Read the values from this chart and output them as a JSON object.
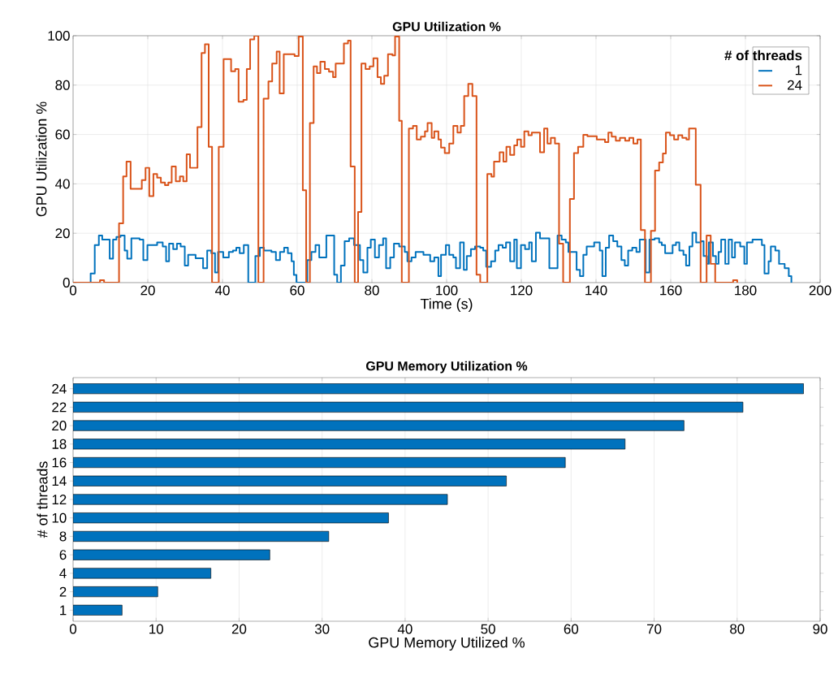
{
  "chart_data": [
    {
      "type": "step",
      "title": "GPU Utilization %",
      "xlabel": "Time (s)",
      "ylabel": "GPU Utilization %",
      "legend_title": "# of threads",
      "legend": "top right",
      "grid": true,
      "line_style": "solid",
      "xlim": [
        0,
        200
      ],
      "xticks": [
        0,
        20,
        40,
        60,
        80,
        100,
        120,
        140,
        160,
        180,
        200
      ],
      "ylim": [
        0,
        100
      ],
      "yticks": [
        0,
        20,
        40,
        60,
        80,
        100
      ],
      "series": [
        {
          "name": "1",
          "color": "#0072bd",
          "x": [
            0,
            4.7,
            5.8,
            6.9,
            7.8,
            9.8,
            10.7,
            11.6,
            12.7,
            13.8,
            14.5,
            15.6,
            17.8,
            18.8,
            19.9,
            22.5,
            24,
            24.9,
            25.7,
            26.8,
            27.8,
            28.8,
            29.9,
            30.8,
            32.8,
            34.8,
            35.9,
            37,
            38,
            38.8,
            40.2,
            41.7,
            42.8,
            43.7,
            44.6,
            45.7,
            46.9,
            48.8,
            50,
            51.1,
            53.1,
            54.3,
            55.4,
            56.5,
            57.5,
            58.5,
            59.1,
            59.8,
            62.7,
            63.8,
            64.9,
            65.9,
            67.8,
            69.9,
            70.7,
            71.7,
            72.7,
            73.9,
            75.2,
            76.8,
            77.7,
            78.8,
            79.7,
            80.8,
            81.9,
            83,
            83.8,
            84.9,
            85.9,
            87.3,
            88.8,
            89.5,
            90.6,
            91.7,
            93.8,
            95.6,
            96.7,
            97.8,
            98.5,
            99.8,
            100.7,
            101.8,
            102.5,
            103.6,
            104.6,
            105.4,
            106.5,
            107.6,
            109,
            109.8,
            110.6,
            111.9,
            113,
            113.9,
            115,
            115.9,
            117,
            118.1,
            118.8,
            119.9,
            121,
            122.1,
            122.8,
            123.9,
            125,
            127.5,
            129.7,
            130.8,
            131.9,
            132.6,
            134.8,
            135.7,
            136.6,
            137.5,
            139.5,
            141,
            141.7,
            142.6,
            143.5,
            144.6,
            145.7,
            146.8,
            147.7,
            148.6,
            149.7,
            150.8,
            151.7,
            153.3,
            154.3,
            155.7,
            156.9,
            157.6,
            158.5,
            160.5,
            161.4,
            162.3,
            163.4,
            164.1,
            165,
            165.8,
            166.8,
            168.1,
            168.8,
            169.7,
            170.2,
            171.3,
            172.1,
            172.8,
            173.5,
            174.6,
            175.5,
            176.4,
            177.2,
            178.6,
            179.7,
            180.4,
            181.9,
            184.4,
            185.1,
            186.2,
            186.8,
            188,
            189,
            190.5,
            191.6,
            192.3
          ],
          "values": [
            0,
            3.7,
            15.2,
            19.1,
            17.4,
            9.7,
            17.4,
            18.5,
            19.1,
            13,
            9.7,
            17.9,
            17.4,
            9.1,
            15.2,
            16.3,
            14.6,
            8.6,
            15.8,
            13.6,
            15.8,
            14.6,
            6.9,
            11.3,
            9.9,
            5.8,
            13,
            11.9,
            4.1,
            12.4,
            10.2,
            12.4,
            13,
            14.1,
            11.9,
            15.2,
            0,
            10.8,
            14.1,
            13,
            12.4,
            9.1,
            12.4,
            14.1,
            11.9,
            8.6,
            3.1,
            0,
            9.1,
            12.4,
            15.2,
            10.2,
            19.1,
            3.2,
            0,
            6.9,
            16.8,
            17.9,
            15.2,
            9.1,
            4.1,
            14.1,
            17.4,
            10.2,
            15.2,
            17.9,
            5.8,
            10.2,
            15.8,
            14.6,
            12.4,
            8.6,
            10.2,
            12.4,
            11.3,
            8.6,
            10.2,
            2.6,
            11.3,
            15.2,
            11.3,
            10.2,
            5.8,
            16.3,
            5.2,
            10.8,
            13.6,
            14.6,
            14.1,
            13,
            6.4,
            8.6,
            13,
            15.2,
            14.1,
            16.3,
            8.6,
            17.4,
            5.8,
            15.2,
            13.6,
            16.3,
            8.6,
            20.2,
            17.9,
            5.8,
            19.1,
            17.4,
            16.3,
            12.4,
            5.2,
            2.6,
            11.3,
            14.6,
            16.3,
            13,
            2.6,
            14.1,
            19.1,
            16.8,
            14.6,
            9.1,
            6.9,
            13,
            14.1,
            12.4,
            17.4,
            4.1,
            17.4,
            17.9,
            16.3,
            15.2,
            11.9,
            15.2,
            16.3,
            13,
            11.3,
            6.9,
            14.6,
            20.2,
            16.3,
            16.8,
            10.8,
            7.6,
            16.3,
            10.8,
            7.6,
            12.4,
            17.4,
            7.6,
            17.4,
            10.2,
            16.3,
            14.6,
            7.6,
            16.3,
            17.4,
            15.2,
            3.7,
            8.6,
            14.6,
            13,
            7.6,
            5.8,
            2.6,
            0
          ]
        },
        {
          "name": "24",
          "color": "#d95319",
          "x": [
            0,
            7.2,
            8.3,
            12.3,
            13.4,
            14.3,
            15.4,
            18.4,
            19.4,
            20.4,
            21.5,
            22.5,
            23.5,
            24.6,
            25.5,
            26.4,
            27.5,
            28.6,
            29.5,
            30.4,
            31.3,
            33.3,
            34.4,
            35.3,
            36.3,
            37.2,
            39,
            40.3,
            42.3,
            43.4,
            44.3,
            45.6,
            46.5,
            47.4,
            48.5,
            49.6,
            51,
            52.3,
            53.3,
            54.5,
            55.3,
            56.4,
            59.3,
            60.4,
            61.5,
            62.4,
            63.4,
            64.4,
            65.3,
            66.2,
            67.4,
            68.5,
            69.6,
            70.3,
            72.5,
            73.6,
            74.3,
            75.4,
            76.3,
            77.2,
            78.3,
            79.4,
            80.4,
            81.5,
            82.4,
            83.3,
            84.3,
            85.5,
            86.2,
            87.3,
            88,
            89.9,
            91,
            92,
            93.1,
            94.2,
            94.9,
            96,
            96.7,
            97.8,
            98.5,
            99.5,
            100.7,
            101.8,
            102.9,
            103.8,
            104.7,
            105.8,
            106.9,
            108,
            109,
            110.9,
            112,
            112.7,
            114.2,
            115.2,
            116,
            117,
            118.1,
            118.9,
            119.9,
            120.8,
            121.9,
            122.8,
            125,
            126.1,
            127,
            127.9,
            129,
            130.1,
            131.2,
            133,
            134.1,
            135.2,
            136.6,
            137.7,
            140.2,
            142.4,
            143.3,
            144.2,
            145.3,
            146.4,
            147.8,
            148.9,
            150,
            151.1,
            152,
            153.1,
            154.7,
            155.8,
            156.9,
            157.9,
            158.7,
            159.8,
            160.9,
            162,
            163.1,
            164.2,
            164.9,
            166.7,
            168,
            169.6,
            170.7,
            171.9,
            176.7,
            177.8
          ],
          "values": [
            0,
            1,
            0,
            24,
            43,
            49,
            38,
            41.5,
            46.5,
            35,
            44,
            42.5,
            40.5,
            39.5,
            40.5,
            47,
            41,
            43,
            41,
            52,
            46.5,
            63,
            93,
            96.5,
            55,
            0,
            55,
            90.5,
            85.6,
            86.5,
            73.3,
            74,
            86.5,
            98.5,
            100,
            0,
            74.5,
            81.5,
            88.7,
            93.6,
            76.6,
            92.5,
            91.8,
            99.7,
            37.4,
            0,
            64.6,
            87.6,
            84.9,
            89.5,
            86.5,
            85.4,
            83.2,
            88.7,
            96.9,
            98,
            47,
            0,
            28.6,
            88.7,
            86.5,
            87.6,
            90.9,
            83.2,
            80.5,
            83.8,
            92.5,
            92,
            99.7,
            65.5,
            0,
            62.4,
            63.5,
            58,
            59.1,
            61.3,
            64.6,
            58.6,
            61.3,
            58,
            54.7,
            52.5,
            56.3,
            63.5,
            60.8,
            63.5,
            75.6,
            80.5,
            75.6,
            3.2,
            0,
            44,
            42.9,
            49,
            52.8,
            49,
            55,
            51.7,
            55.6,
            58,
            55,
            61.3,
            59.7,
            60.8,
            52.8,
            62.4,
            56.3,
            58.6,
            56.3,
            15.8,
            0,
            33.9,
            52.5,
            55,
            59.9,
            59.3,
            58,
            56.9,
            60.8,
            59.1,
            57.5,
            58.6,
            57.5,
            58.6,
            56.3,
            58,
            21.3,
            0,
            21,
            45.4,
            48.7,
            52.3,
            60.8,
            59.7,
            58,
            59.7,
            58.6,
            58,
            62.4,
            39.6,
            0,
            19.1,
            7.6,
            0,
            1,
            0
          ]
        }
      ]
    },
    {
      "type": "bar",
      "orientation": "horizontal",
      "title": "GPU Memory Utilization %",
      "xlabel": "GPU Memory Utilized %",
      "ylabel": "# of threads",
      "grid": "x",
      "color": "#0072bd",
      "categories": [
        "24",
        "22",
        "20",
        "18",
        "16",
        "14",
        "12",
        "10",
        "8",
        "6",
        "4",
        "2",
        "1"
      ],
      "values": [
        88,
        80.7,
        73.6,
        66.5,
        59.3,
        52.2,
        45.1,
        38,
        30.8,
        23.7,
        16.6,
        10.2,
        5.9
      ],
      "xlim": [
        0,
        90
      ],
      "xticks": [
        0,
        10,
        20,
        30,
        40,
        50,
        60,
        70,
        80,
        90
      ]
    }
  ]
}
